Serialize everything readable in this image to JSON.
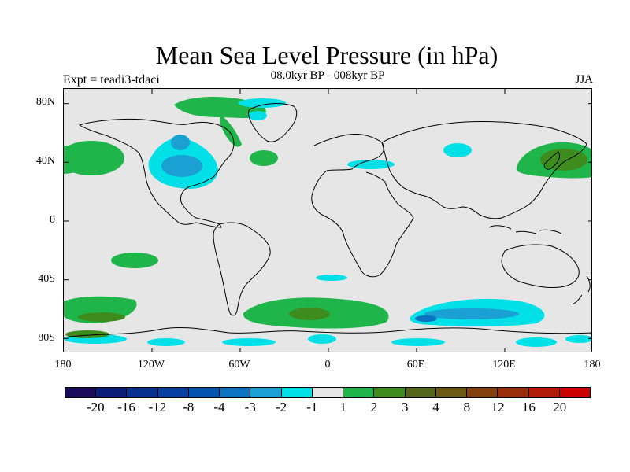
{
  "title": "Mean Sea Level Pressure (in hPa)",
  "subtitle": "08.0kyr BP - 008kyr BP",
  "left_label": "Expt = teadi3-tdaci",
  "season": "JJA",
  "map": {
    "projection": "cylindrical equidistant",
    "lon_range": [
      -180,
      180
    ],
    "lat_range": [
      -90,
      90
    ],
    "background_color": "#e6e6e6",
    "coastline_color": "#000000",
    "lat_ticks": [
      "80N",
      "40N",
      "0",
      "40S",
      "80S"
    ],
    "lon_ticks": [
      "180",
      "120W",
      "60W",
      "0",
      "60E",
      "120E",
      "180"
    ]
  },
  "colorbar": {
    "colors": [
      "#1a0a5a",
      "#0a1e78",
      "#08308f",
      "#073fa0",
      "#0553b0",
      "#0a74c2",
      "#1aa0d2",
      "#00e0e6",
      "#e6e6e6",
      "#1fb54a",
      "#3e8c1e",
      "#53661a",
      "#6b5a13",
      "#82400e",
      "#9a2e0a",
      "#b11a06",
      "#cc0000"
    ],
    "labels": [
      "-20",
      "-16",
      "-12",
      "-8",
      "-4",
      "-3",
      "-2",
      "-1",
      "1",
      "2",
      "3",
      "4",
      "8",
      "12",
      "16",
      "20"
    ]
  }
}
